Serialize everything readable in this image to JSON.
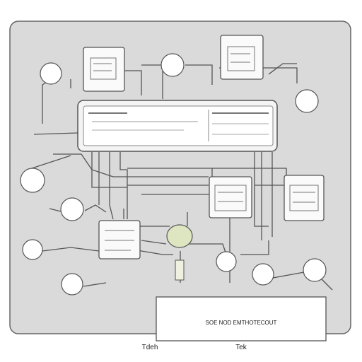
{
  "panel_footer_text": "SOE NOD EMTHOTECOUT",
  "bottom_labels": {
    "left": "Tdeh",
    "right": "Tek"
  },
  "colors": {
    "panel_bg": "#dadada",
    "line": "#555555",
    "box_fill": "#ffffff",
    "accent": "#dde6c0"
  }
}
